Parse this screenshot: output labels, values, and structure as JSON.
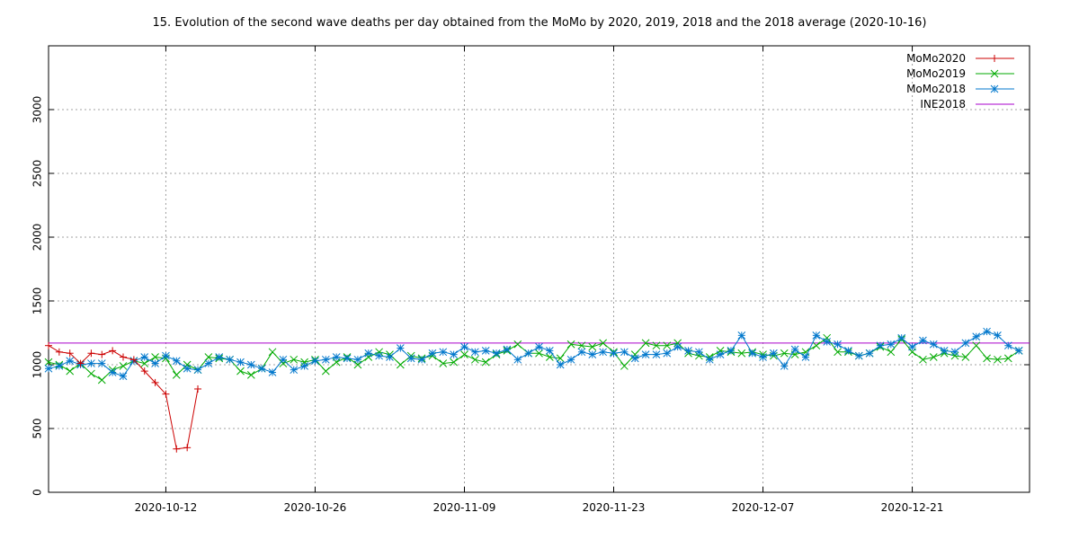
{
  "chart_data": {
    "type": "line",
    "title": "15. Evolution of the second wave deaths per day obtained from the MoMo by 2020, 2019, 2018 and the 2018 average (2020-10-16)",
    "x_range": [
      "2020-10-01",
      "2021-01-01"
    ],
    "ylim": [
      0,
      3500
    ],
    "y_ticks": [
      0,
      500,
      1000,
      1500,
      2000,
      2500,
      3000
    ],
    "x_ticks": [
      "2020-10-12",
      "2020-10-26",
      "2020-11-09",
      "2020-11-23",
      "2020-12-07",
      "2020-12-21"
    ],
    "grid": true,
    "legend_position": "top-right",
    "series": [
      {
        "name": "MoMo2020",
        "color": "#cc0000",
        "marker": "plus",
        "x": [
          "2020-10-01",
          "2020-10-02",
          "2020-10-03",
          "2020-10-04",
          "2020-10-05",
          "2020-10-06",
          "2020-10-07",
          "2020-10-08",
          "2020-10-09",
          "2020-10-10",
          "2020-10-11",
          "2020-10-12",
          "2020-10-13",
          "2020-10-14",
          "2020-10-15"
        ],
        "values": [
          1150,
          1100,
          1090,
          1010,
          1090,
          1080,
          1110,
          1060,
          1040,
          950,
          860,
          770,
          340,
          350,
          810
        ]
      },
      {
        "name": "MoMo2019",
        "color": "#00aa00",
        "marker": "x",
        "x": [
          "2020-10-01",
          "2020-10-02",
          "2020-10-03",
          "2020-10-04",
          "2020-10-05",
          "2020-10-06",
          "2020-10-07",
          "2020-10-08",
          "2020-10-09",
          "2020-10-10",
          "2020-10-11",
          "2020-10-12",
          "2020-10-13",
          "2020-10-14",
          "2020-10-15",
          "2020-10-16",
          "2020-10-17",
          "2020-10-18",
          "2020-10-19",
          "2020-10-20",
          "2020-10-21",
          "2020-10-22",
          "2020-10-23",
          "2020-10-24",
          "2020-10-25",
          "2020-10-26",
          "2020-10-27",
          "2020-10-28",
          "2020-10-29",
          "2020-10-30",
          "2020-10-31",
          "2020-11-01",
          "2020-11-02",
          "2020-11-03",
          "2020-11-04",
          "2020-11-05",
          "2020-11-06",
          "2020-11-07",
          "2020-11-08",
          "2020-11-09",
          "2020-11-10",
          "2020-11-11",
          "2020-11-12",
          "2020-11-13",
          "2020-11-14",
          "2020-11-15",
          "2020-11-16",
          "2020-11-17",
          "2020-11-18",
          "2020-11-19",
          "2020-11-20",
          "2020-11-21",
          "2020-11-22",
          "2020-11-23",
          "2020-11-24",
          "2020-11-25",
          "2020-11-26",
          "2020-11-27",
          "2020-11-28",
          "2020-11-29",
          "2020-11-30",
          "2020-12-01",
          "2020-12-02",
          "2020-12-03",
          "2020-12-04",
          "2020-12-05",
          "2020-12-06",
          "2020-12-07",
          "2020-12-08",
          "2020-12-09",
          "2020-12-10",
          "2020-12-11",
          "2020-12-12",
          "2020-12-13",
          "2020-12-14",
          "2020-12-15",
          "2020-12-16",
          "2020-12-17",
          "2020-12-18",
          "2020-12-19",
          "2020-12-20",
          "2020-12-21",
          "2020-12-22",
          "2020-12-23",
          "2020-12-24",
          "2020-12-25",
          "2020-12-26",
          "2020-12-27",
          "2020-12-28",
          "2020-12-29",
          "2020-12-30",
          "2020-12-31"
        ],
        "values": [
          1020,
          1000,
          950,
          1010,
          930,
          880,
          960,
          990,
          1030,
          1010,
          1060,
          1050,
          920,
          1000,
          960,
          1060,
          1050,
          1040,
          950,
          920,
          970,
          1100,
          1010,
          1040,
          1020,
          1040,
          950,
          1020,
          1060,
          1000,
          1060,
          1100,
          1080,
          1000,
          1070,
          1050,
          1070,
          1010,
          1020,
          1080,
          1040,
          1020,
          1080,
          1110,
          1160,
          1090,
          1090,
          1060,
          1050,
          1160,
          1150,
          1140,
          1170,
          1100,
          990,
          1080,
          1170,
          1150,
          1150,
          1170,
          1090,
          1070,
          1060,
          1110,
          1100,
          1090,
          1100,
          1080,
          1070,
          1090,
          1080,
          1100,
          1150,
          1210,
          1100,
          1100,
          1070,
          1090,
          1140,
          1100,
          1200,
          1100,
          1040,
          1060,
          1090,
          1070,
          1060,
          1150,
          1050,
          1040,
          1050,
          1110
        ]
      },
      {
        "name": "MoMo2018",
        "color": "#0077cc",
        "marker": "star",
        "x": [
          "2020-10-01",
          "2020-10-02",
          "2020-10-03",
          "2020-10-04",
          "2020-10-05",
          "2020-10-06",
          "2020-10-07",
          "2020-10-08",
          "2020-10-09",
          "2020-10-10",
          "2020-10-11",
          "2020-10-12",
          "2020-10-13",
          "2020-10-14",
          "2020-10-15",
          "2020-10-16",
          "2020-10-17",
          "2020-10-18",
          "2020-10-19",
          "2020-10-20",
          "2020-10-21",
          "2020-10-22",
          "2020-10-23",
          "2020-10-24",
          "2020-10-25",
          "2020-10-26",
          "2020-10-27",
          "2020-10-28",
          "2020-10-29",
          "2020-10-30",
          "2020-10-31",
          "2020-11-01",
          "2020-11-02",
          "2020-11-03",
          "2020-11-04",
          "2020-11-05",
          "2020-11-06",
          "2020-11-07",
          "2020-11-08",
          "2020-11-09",
          "2020-11-10",
          "2020-11-11",
          "2020-11-12",
          "2020-11-13",
          "2020-11-14",
          "2020-11-15",
          "2020-11-16",
          "2020-11-17",
          "2020-11-18",
          "2020-11-19",
          "2020-11-20",
          "2020-11-21",
          "2020-11-22",
          "2020-11-23",
          "2020-11-24",
          "2020-11-25",
          "2020-11-26",
          "2020-11-27",
          "2020-11-28",
          "2020-11-29",
          "2020-11-30",
          "2020-12-01",
          "2020-12-02",
          "2020-12-03",
          "2020-12-04",
          "2020-12-05",
          "2020-12-06",
          "2020-12-07",
          "2020-12-08",
          "2020-12-09",
          "2020-12-10",
          "2020-12-11",
          "2020-12-12",
          "2020-12-13",
          "2020-12-14",
          "2020-12-15",
          "2020-12-16",
          "2020-12-17",
          "2020-12-18",
          "2020-12-19",
          "2020-12-20",
          "2020-12-21",
          "2020-12-22",
          "2020-12-23",
          "2020-12-24",
          "2020-12-25",
          "2020-12-26",
          "2020-12-27",
          "2020-12-28",
          "2020-12-29",
          "2020-12-30",
          "2020-12-31"
        ],
        "values": [
          970,
          990,
          1030,
          1000,
          1010,
          1010,
          940,
          910,
          1030,
          1060,
          1010,
          1070,
          1030,
          970,
          960,
          1010,
          1060,
          1040,
          1020,
          1000,
          970,
          940,
          1040,
          960,
          990,
          1030,
          1040,
          1060,
          1050,
          1040,
          1090,
          1070,
          1060,
          1130,
          1050,
          1040,
          1090,
          1100,
          1080,
          1140,
          1100,
          1110,
          1090,
          1120,
          1040,
          1090,
          1140,
          1110,
          1000,
          1040,
          1100,
          1080,
          1100,
          1090,
          1100,
          1050,
          1080,
          1080,
          1090,
          1140,
          1110,
          1100,
          1040,
          1080,
          1110,
          1230,
          1090,
          1060,
          1090,
          990,
          1120,
          1060,
          1230,
          1180,
          1160,
          1110,
          1070,
          1090,
          1150,
          1160,
          1210,
          1140,
          1190,
          1160,
          1110,
          1100,
          1170,
          1220,
          1260,
          1230,
          1150,
          1110
        ]
      },
      {
        "name": "INE2018",
        "color": "#aa00cc",
        "marker": "none",
        "constant": 1170
      }
    ]
  }
}
